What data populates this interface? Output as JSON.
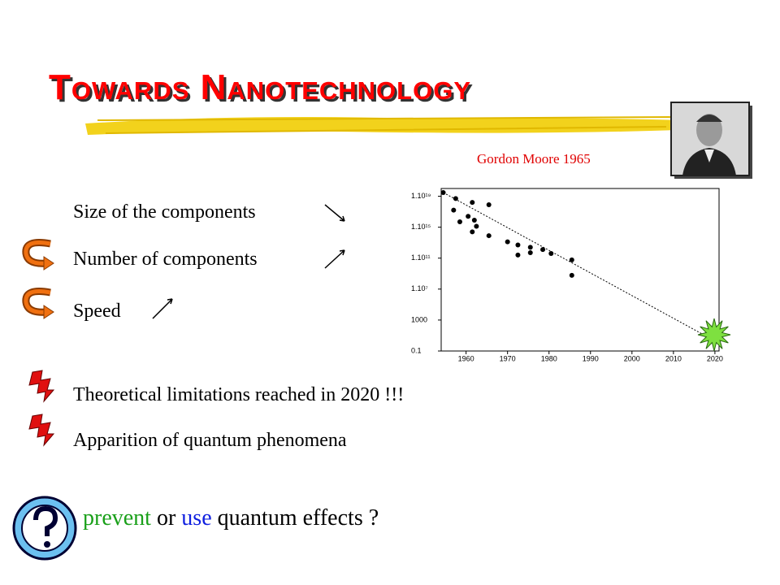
{
  "header": {
    "title": "Towards Nanotechnology",
    "caption": "Gordon Moore 1965"
  },
  "bullets": [
    "Size of the components",
    "Number of components",
    "Speed"
  ],
  "warnings": [
    "Theoretical limitations reached in 2020 !!!",
    "Apparition of quantum  phenomena"
  ],
  "question": [
    "prevent",
    "or",
    "use",
    "quantum effects ?"
  ],
  "chart_data": {
    "type": "scatter",
    "yscale": "log",
    "grid": false,
    "color": "#000000",
    "x": [
      1954.5,
      1957.5,
      1957,
      1958.5,
      1960.5,
      1961.5,
      1962,
      1962.5,
      1961.5,
      1965.5,
      1965.5,
      1970,
      1972.5,
      1972.5,
      1975.5,
      1975.5,
      1978.5,
      1980.5,
      1985.5,
      1985.5
    ],
    "values": [
      3e+19,
      5e+18,
      1.6e+17,
      5000000000000000.0,
      2.5e+16,
      1.6e+18,
      8000000000000000.0,
      1300000000000000.0,
      250000000000000.0,
      8e+17,
      80000000000000.0,
      13000000000000.0,
      5000000000000.0,
      250000000000.0,
      2500000000000.0,
      500000000000.0,
      1300000000000.0,
      400000000000.0,
      60000000000.0,
      600000000.0
    ],
    "trend": {
      "x": [
        1954.5,
        2020
      ],
      "values": [
        3e+19,
        2
      ]
    },
    "xlim": [
      1954,
      2021
    ],
    "ylim": [
      0.1,
      1e+20
    ],
    "xticks": [
      1960,
      1970,
      1980,
      1990,
      2000,
      2010,
      2020
    ],
    "yticks": [
      {
        "value": 0.1,
        "label": "0.1"
      },
      {
        "value": 1000,
        "label": "1000"
      },
      {
        "value": 10000000.0,
        "label": "1.10⁷"
      },
      {
        "value": 100000000000.0,
        "label": "1.10¹¹"
      },
      {
        "value": 1000000000000000.0,
        "label": "1.10¹⁵"
      },
      {
        "value": 1e+19,
        "label": "1.10¹⁹"
      }
    ]
  }
}
